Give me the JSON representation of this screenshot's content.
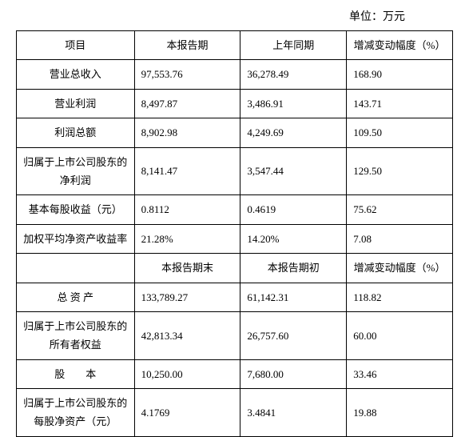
{
  "unit_label": "单位：万元",
  "table": {
    "columns": [
      "项目",
      "本报告期",
      "上年同期",
      "增减变动幅度（%）"
    ],
    "columns2": [
      "",
      "本报告期末",
      "本报告期初",
      "增减变动幅度（%）"
    ],
    "rows_top": [
      {
        "item": "营业总收入",
        "c1": "97,553.76",
        "c2": "36,278.49",
        "c3": "168.90",
        "tall": false
      },
      {
        "item": "营业利润",
        "c1": "8,497.87",
        "c2": "3,486.91",
        "c3": "143.71",
        "tall": false
      },
      {
        "item": "利润总额",
        "c1": "8,902.98",
        "c2": "4,249.69",
        "c3": "109.50",
        "tall": false
      },
      {
        "item": "归属于上市公司股东的净利润",
        "c1": "8,141.47",
        "c2": "3,547.44",
        "c3": "129.50",
        "tall": true
      },
      {
        "item": "基本每股收益（元）",
        "c1": "0.8112",
        "c2": "0.4619",
        "c3": "75.62",
        "tall": false
      },
      {
        "item": "加权平均净资产收益率",
        "c1": "21.28%",
        "c2": "14.20%",
        "c3": "7.08",
        "tall": false
      }
    ],
    "rows_bottom": [
      {
        "item": "总 资 产",
        "c1": "133,789.27",
        "c2": "61,142.31",
        "c3": "118.82",
        "tall": false
      },
      {
        "item": "归属于上市公司股东的所有者权益",
        "c1": "42,813.34",
        "c2": "26,757.60",
        "c3": "60.00",
        "tall": true
      },
      {
        "item": "股　　本",
        "c1": "10,250.00",
        "c2": "7,680.00",
        "c3": "33.46",
        "tall": false
      },
      {
        "item": "归属于上市公司股东的每股净资产（元）",
        "c1": "4.1769",
        "c2": "3.4841",
        "c3": "19.88",
        "tall": true
      }
    ]
  }
}
